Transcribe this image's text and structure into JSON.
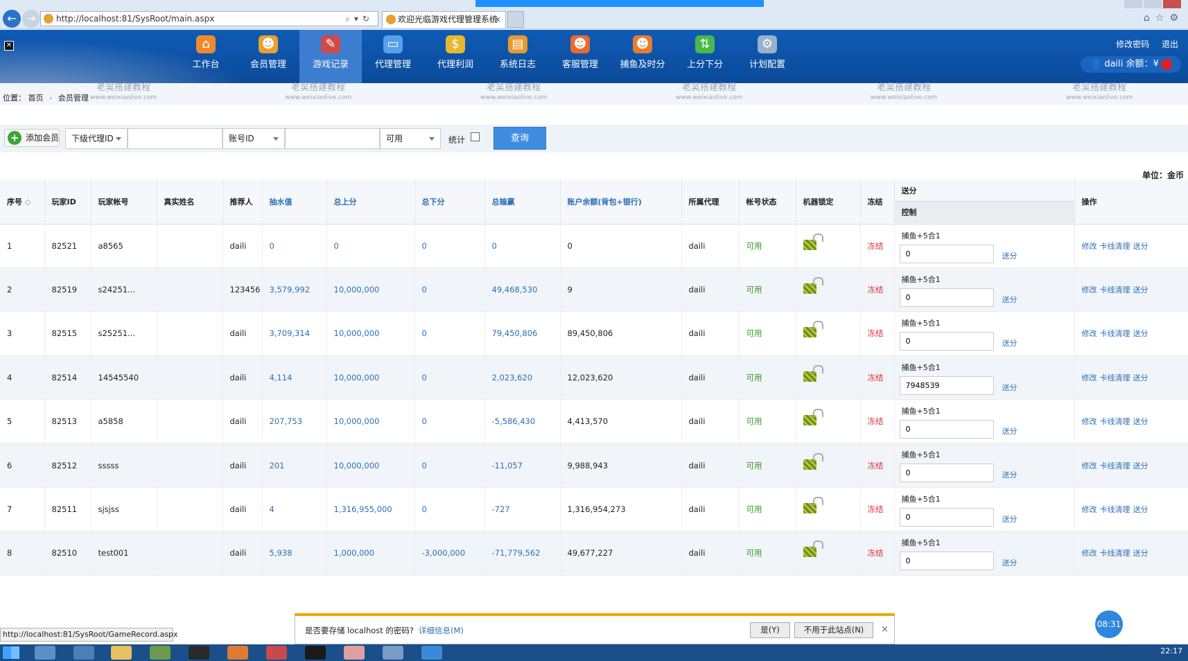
{
  "browser": {
    "url": "http://localhost:81/SysRoot/main.aspx",
    "tab_title": "欢迎光临游戏代理管理系统",
    "back_icon": "←",
    "forward_icon": "→",
    "address_tools": "⌕▾↻",
    "tab_close": "×",
    "chrome_icons": "⌂☆⚙"
  },
  "header": {
    "close_icon": "✕",
    "nav": [
      {
        "label": "工作台",
        "icon": "⌂",
        "color": "#f08a2c"
      },
      {
        "label": "会员管理",
        "icon": "☻",
        "color": "#e8a030"
      },
      {
        "label": "游戏记录",
        "icon": "✎",
        "color": "#d04a4a"
      },
      {
        "label": "代理管理",
        "icon": "▭",
        "color": "#5aa0e8"
      },
      {
        "label": "代理利润",
        "icon": "$",
        "color": "#e8b830"
      },
      {
        "label": "系统日志",
        "icon": "▤",
        "color": "#e89a30"
      },
      {
        "label": "客服管理",
        "icon": "☻",
        "color": "#e86a30"
      },
      {
        "label": "捕鱼及时分",
        "icon": "☻",
        "color": "#e87a30"
      },
      {
        "label": "上分下分",
        "icon": "⇅",
        "color": "#4ab84a"
      },
      {
        "label": "计划配置",
        "icon": "⚙",
        "color": "#9ab0c8"
      }
    ],
    "change_password": "修改密码",
    "logout": "退出",
    "user_icon": "👤",
    "balance_label": "daili 余额：¥"
  },
  "watermark": {
    "main": "老吴搭建教程",
    "sub": "www.weixiaolive.com"
  },
  "breadcrumb": {
    "prefix": "位置：",
    "home": "首页",
    "sep": "›",
    "current": "会员管理"
  },
  "toolbar": {
    "add_member": "添加会员",
    "add_icon": "+",
    "agent_select": "下级代理ID",
    "agent_input": "",
    "account_select": "账号ID",
    "account_input": "",
    "status_select": "可用",
    "stat_label": "统计",
    "query_button": "查询"
  },
  "unit_label": "单位：金币",
  "table": {
    "headers": [
      "序号",
      "玩家ID",
      "玩家帐号",
      "真实姓名",
      "推荐人",
      "抽水值",
      "总上分",
      "总下分",
      "总输赢",
      "账户余额(背包+银行)",
      "所属代理",
      "帐号状态",
      "机器锁定",
      "冻结",
      "送分",
      "控制",
      "操作"
    ],
    "sort_icon": "◇",
    "send_title": "捕鱼+5合1",
    "send_btn": "送分",
    "ops": [
      "修改",
      "卡线清理",
      "送分"
    ],
    "rows": [
      {
        "no": "1",
        "id": "82521",
        "account": "a8565",
        "name": "",
        "referrer": "daili",
        "rake": "0",
        "total_up": "0",
        "total_down": "0",
        "total_win": "0",
        "balance": "0",
        "agent": "daili",
        "status": "可用",
        "freeze": "冻结",
        "send_value": "0"
      },
      {
        "no": "2",
        "id": "82519",
        "account": "s24251...",
        "name": "",
        "referrer": "123456",
        "rake": "3,579,992",
        "total_up": "10,000,000",
        "total_down": "0",
        "total_win": "49,468,530",
        "balance": "9",
        "agent": "daili",
        "status": "可用",
        "freeze": "冻结",
        "send_value": "0"
      },
      {
        "no": "3",
        "id": "82515",
        "account": "s25251...",
        "name": "",
        "referrer": "daili",
        "rake": "3,709,314",
        "total_up": "10,000,000",
        "total_down": "0",
        "total_win": "79,450,806",
        "balance": "89,450,806",
        "agent": "daili",
        "status": "可用",
        "freeze": "冻结",
        "send_value": "0"
      },
      {
        "no": "4",
        "id": "82514",
        "account": "14545540",
        "name": "",
        "referrer": "daili",
        "rake": "4,114",
        "total_up": "10,000,000",
        "total_down": "0",
        "total_win": "2,023,620",
        "balance": "12,023,620",
        "agent": "daili",
        "status": "可用",
        "freeze": "冻结",
        "send_value": "7948539"
      },
      {
        "no": "5",
        "id": "82513",
        "account": "a5858",
        "name": "",
        "referrer": "daili",
        "rake": "207,753",
        "total_up": "10,000,000",
        "total_down": "0",
        "total_win": "-5,586,430",
        "balance": "4,413,570",
        "agent": "daili",
        "status": "可用",
        "freeze": "冻结",
        "send_value": "0"
      },
      {
        "no": "6",
        "id": "82512",
        "account": "sssss",
        "name": "",
        "referrer": "daili",
        "rake": "201",
        "total_up": "10,000,000",
        "total_down": "0",
        "total_win": "-11,057",
        "balance": "9,988,943",
        "agent": "daili",
        "status": "可用",
        "freeze": "冻结",
        "send_value": "0"
      },
      {
        "no": "7",
        "id": "82511",
        "account": "sjsjss",
        "name": "",
        "referrer": "daili",
        "rake": "4",
        "total_up": "1,316,955,000",
        "total_down": "0",
        "total_win": "-727",
        "balance": "1,316,954,273",
        "agent": "daili",
        "status": "可用",
        "freeze": "冻结",
        "send_value": "0"
      },
      {
        "no": "8",
        "id": "82510",
        "account": "test001",
        "name": "",
        "referrer": "daili",
        "rake": "5,938",
        "total_up": "1,000,000",
        "total_down": "-3,000,000",
        "total_win": "-71,779,562",
        "balance": "49,677,227",
        "agent": "daili",
        "status": "可用",
        "freeze": "冻结",
        "send_value": "0"
      }
    ]
  },
  "status_url": "http://localhost:81/SysRoot/GameRecord.aspx",
  "password_bar": {
    "message": "是否要存储 localhost 的密码?",
    "details": "详细信息(M)",
    "yes": "是(Y)",
    "no": "不用于此站点(N)",
    "close": "×"
  },
  "time_badge": "08:31",
  "taskbar": {
    "time": "22:17"
  }
}
